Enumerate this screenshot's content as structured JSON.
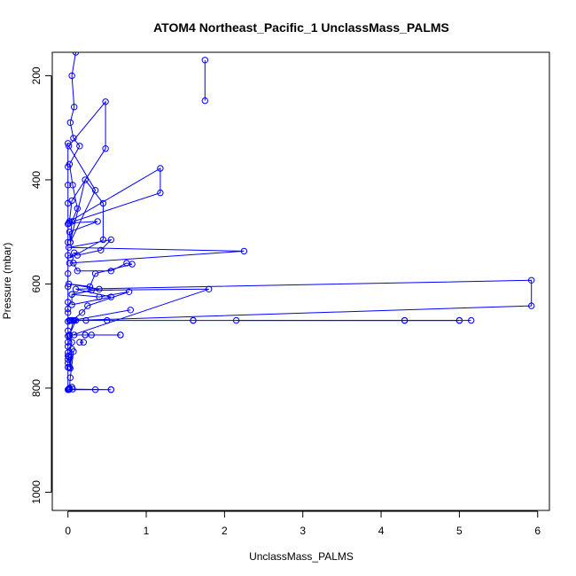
{
  "chart_data": {
    "type": "line",
    "title": "ATOM4 Northeast_Pacific_1 UnclassMass_PALMS",
    "xlabel": "UnclassMass_PALMS",
    "ylabel": "Pressure (mbar)",
    "xlim": [
      -0.2,
      6.15
    ],
    "ylim": [
      1035,
      155
    ],
    "y_inverted": true,
    "x_ticks": [
      0,
      1,
      2,
      3,
      4,
      5,
      6
    ],
    "x_tick_labels": [
      "0",
      "1",
      "2",
      "3",
      "4",
      "5",
      "6"
    ],
    "y_ticks": [
      200,
      400,
      600,
      800,
      1000
    ],
    "y_tick_labels": [
      "200",
      "400",
      "600",
      "800",
      "1000"
    ],
    "grid": false,
    "legend": "none",
    "series_color": "#0000ff",
    "marker": "open-circle",
    "series": [
      {
        "x": [
          0.1,
          0.05,
          0.08,
          0.03,
          0.07,
          0.15,
          0.02,
          0.06,
          0.12,
          0.05,
          0.03,
          0.35,
          0.01,
          0.48,
          0.48,
          0.05,
          0.02,
          1.18,
          1.18,
          0.01,
          0.38,
          0.02,
          0.03,
          0.22,
          0.45,
          0.45,
          0.03,
          0.08,
          0.12,
          0.42,
          0.55,
          0.01,
          2.25,
          0.02,
          0.07,
          0.12,
          0.55,
          0.75,
          0.82,
          0.35,
          0.28,
          0.01,
          0.4,
          0.05,
          0.05,
          0.55,
          0.1,
          5.92,
          5.92,
          0.07,
          0.02,
          1.8,
          0.3,
          0.05,
          0.4,
          0.78,
          0.25,
          0.18,
          0.05,
          0.05,
          0.8,
          0.05,
          0.23,
          0.08,
          0.02,
          0.05,
          0.03,
          0.5,
          1.6,
          1.6,
          4.3,
          4.3,
          5.0,
          5.0,
          0.05,
          0.1,
          0.02,
          0.22,
          0.22,
          0.67,
          0.67,
          0.3,
          0.08,
          0.02,
          0.05,
          0.01,
          0.03,
          0.05,
          0.02,
          0.07,
          0.03,
          0.02,
          0.05,
          0.02,
          0.01,
          0.35,
          0.55,
          0.55,
          0.06,
          0.01
        ],
        "y": [
          155,
          200,
          260,
          290,
          320,
          335,
          370,
          410,
          455,
          480,
          520,
          420,
          335,
          250,
          340,
          440,
          480,
          378,
          425,
          483,
          480,
          500,
          520,
          400,
          445,
          515,
          550,
          540,
          545,
          535,
          515,
          530,
          537,
          560,
          560,
          575,
          575,
          560,
          562,
          580,
          605,
          600,
          610,
          620,
          640,
          625,
          610,
          593,
          642,
          670,
          700,
          610,
          612,
          620,
          625,
          615,
          642,
          655,
          670,
          670,
          650,
          670,
          670,
          670,
          670,
          670,
          670,
          670,
          670,
          670,
          670,
          670,
          670,
          670,
          670,
          670,
          698,
          698,
          698,
          698,
          698,
          698,
          698,
          698,
          712,
          740,
          762,
          725,
          760,
          730,
          780,
          800,
          798,
          802,
          803,
          803,
          803,
          803,
          802,
          802
        ]
      },
      {
        "x": [
          0.0,
          0.0,
          0.0,
          0.0,
          0.0,
          0.0,
          0.0,
          0.0,
          0.0,
          0.0,
          0.0,
          0.0,
          0.0,
          0.0,
          0.0,
          0.0,
          0.0,
          0.0,
          0.0,
          0.0,
          0.0,
          0.0,
          0.0
        ],
        "y": [
          330,
          375,
          410,
          445,
          485,
          520,
          545,
          580,
          605,
          635,
          648,
          655,
          672,
          690,
          700,
          712,
          720,
          732,
          738,
          745,
          752,
          760,
          803
        ]
      },
      {
        "x": [
          1.75,
          1.75
        ],
        "y": [
          170,
          248
        ]
      },
      {
        "x": [
          0.15,
          0.2
        ],
        "y": [
          712,
          712
        ]
      },
      {
        "x": [
          2.15,
          5.15
        ],
        "y": [
          670,
          670
        ]
      }
    ]
  }
}
